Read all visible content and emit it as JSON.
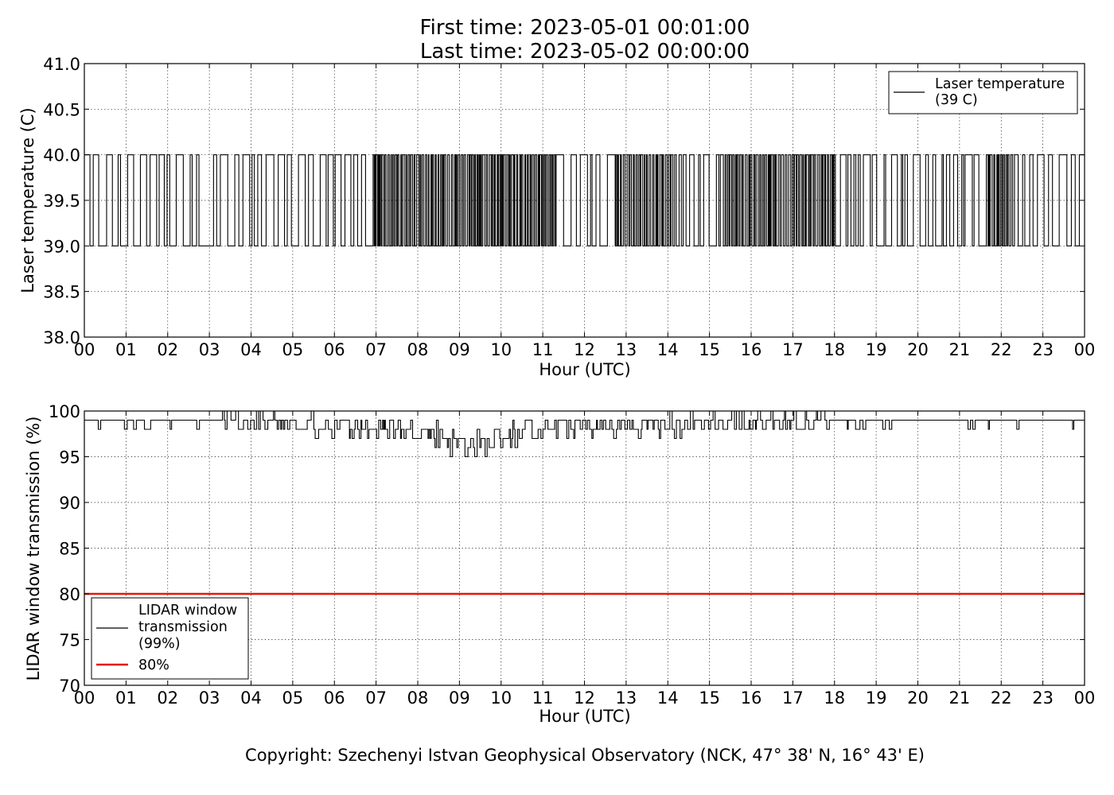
{
  "header": {
    "title_line1": "First time: 2023-05-01 00:01:00",
    "title_line2": "Last time: 2023-05-02 00:00:00"
  },
  "footer": {
    "copyright": "Copyright: Szechenyi Istvan Geophysical Observatory (NCK, 47° 38' N, 16° 43' E)"
  },
  "chart_data": [
    {
      "type": "line",
      "ylabel": "Laser temperature (C)",
      "xlabel": "Hour (UTC)",
      "xlim": [
        0,
        24
      ],
      "ylim": [
        38.0,
        41.0
      ],
      "x_ticks": [
        "00",
        "01",
        "02",
        "03",
        "04",
        "05",
        "06",
        "07",
        "08",
        "09",
        "10",
        "11",
        "12",
        "13",
        "14",
        "15",
        "16",
        "17",
        "18",
        "19",
        "20",
        "21",
        "22",
        "23",
        "00"
      ],
      "y_ticks": [
        "38.0",
        "38.5",
        "39.0",
        "39.5",
        "40.0",
        "40.5",
        "41.0"
      ],
      "y_tick_values": [
        38.0,
        38.5,
        39.0,
        39.5,
        40.0,
        40.5,
        41.0
      ],
      "grid": true,
      "legend_position": "top-right",
      "series": [
        {
          "name": "Laser temperature",
          "legend_lines": [
            "Laser temperature",
            "(39 C)"
          ],
          "color": "#000000",
          "description_values": {
            "low": 39.0,
            "high": 40.0
          },
          "dense_intervals_hours": [
            [
              6.8,
              11.3
            ],
            [
              12.6,
              14.2
            ],
            [
              15.3,
              18.0
            ],
            [
              21.5,
              22.3
            ]
          ],
          "flat_low_interval_hours": [
            2.75,
            3.1
          ]
        }
      ]
    },
    {
      "type": "line",
      "ylabel": "LIDAR window transmission (%)",
      "xlabel": "Hour (UTC)",
      "xlim": [
        0,
        24
      ],
      "ylim": [
        70,
        100
      ],
      "x_ticks": [
        "00",
        "01",
        "02",
        "03",
        "04",
        "05",
        "06",
        "07",
        "08",
        "09",
        "10",
        "11",
        "12",
        "13",
        "14",
        "15",
        "16",
        "17",
        "18",
        "19",
        "20",
        "21",
        "22",
        "23",
        "00"
      ],
      "y_ticks": [
        "70",
        "75",
        "80",
        "85",
        "90",
        "95",
        "100"
      ],
      "y_tick_values": [
        70,
        75,
        80,
        85,
        90,
        95,
        100
      ],
      "grid": true,
      "legend_position": "bottom-left",
      "series": [
        {
          "name": "LIDAR window transmission",
          "legend_lines": [
            "LIDAR window",
            "transmission",
            "(99%)"
          ],
          "color": "#000000",
          "profile_hours": [
            0,
            3.2,
            4,
            5,
            6,
            7,
            8,
            8.5,
            9,
            9.5,
            10,
            11,
            12,
            13,
            14,
            15,
            16,
            17,
            18,
            24
          ],
          "profile_values": [
            99,
            99,
            98.6,
            98.6,
            98.2,
            98.2,
            97.8,
            97.2,
            96.3,
            96.0,
            97.2,
            98.2,
            98.2,
            98.4,
            98.4,
            98.6,
            98.8,
            98.8,
            99,
            99
          ]
        },
        {
          "name": "80%",
          "legend_lines": [
            "80%"
          ],
          "color": "#e3170a",
          "constant_value": 80
        }
      ]
    }
  ]
}
